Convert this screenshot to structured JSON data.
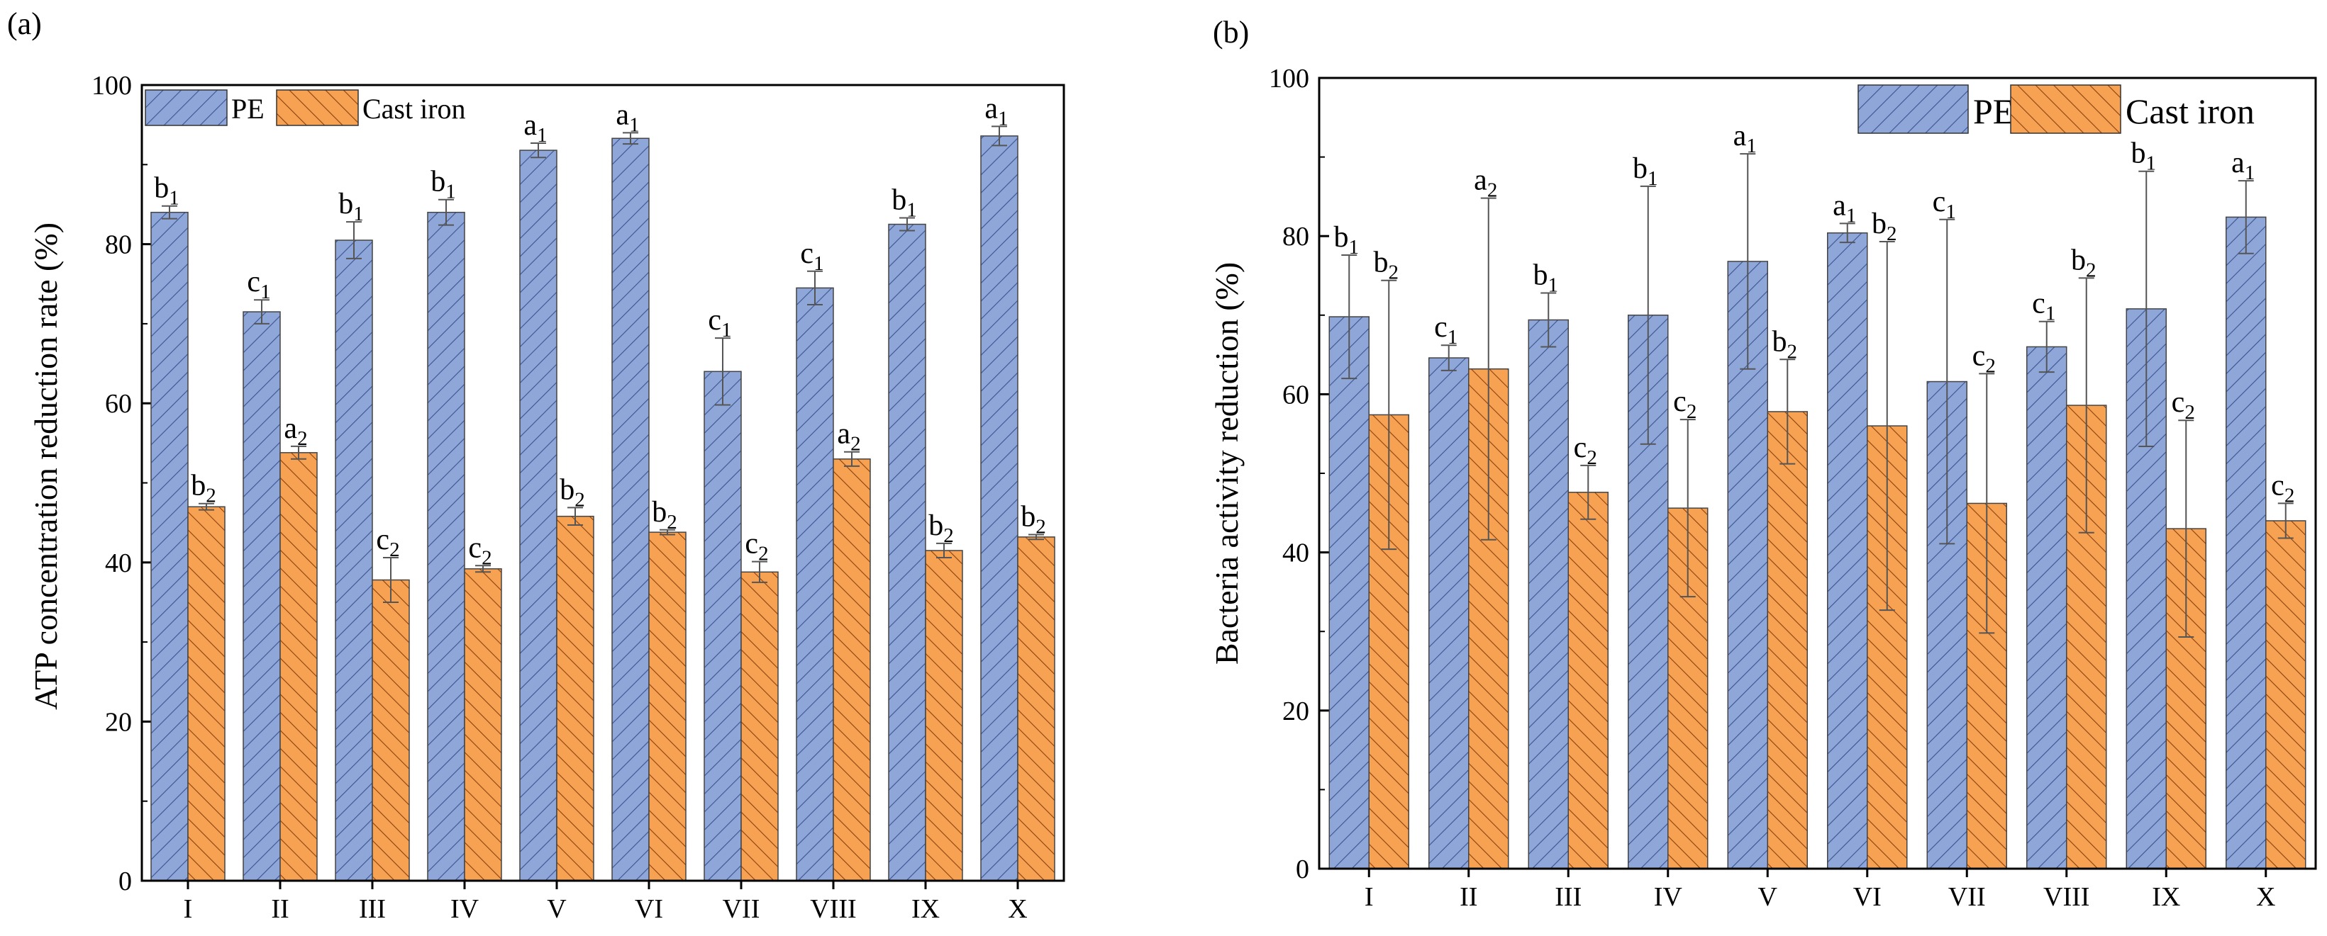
{
  "colors": {
    "pe_fill": "#8EA6D8",
    "pe_hatch": "#3B5390",
    "ci_fill": "#F7A153",
    "ci_hatch": "#8A4210",
    "axis": "#000000"
  },
  "chart_data": [
    {
      "panel_label": "(a)",
      "type": "bar",
      "ylabel": "ATP concentration reduction rate (%)",
      "xlabel": "",
      "ylim": [
        0,
        100
      ],
      "yticks": [
        "0",
        "20",
        "40",
        "60",
        "80",
        "100"
      ],
      "legend": {
        "placement": "top-left",
        "entries": [
          "PE",
          "Cast iron"
        ]
      },
      "categories": [
        "I",
        "II",
        "III",
        "IV",
        "V",
        "VI",
        "VII",
        "VIII",
        "IX",
        "X"
      ],
      "series": [
        {
          "name": "PE",
          "values": [
            84,
            71.5,
            80.5,
            84,
            91.8,
            93.3,
            64,
            74.5,
            82.5,
            93.6
          ],
          "errors": [
            0.8,
            1.5,
            2.3,
            1.6,
            0.9,
            0.7,
            4.2,
            2.1,
            0.8,
            1.2
          ],
          "labels": [
            [
              "b",
              "1"
            ],
            [
              "c",
              "1"
            ],
            [
              "b",
              "1"
            ],
            [
              "b",
              "1"
            ],
            [
              "a",
              "1"
            ],
            [
              "a",
              "1"
            ],
            [
              "c",
              "1"
            ],
            [
              "c",
              "1"
            ],
            [
              "b",
              "1"
            ],
            [
              "a",
              "1"
            ]
          ]
        },
        {
          "name": "Cast iron",
          "values": [
            47,
            53.8,
            37.8,
            39.2,
            45.8,
            43.8,
            38.8,
            53,
            41.5,
            43.2
          ],
          "errors": [
            0.4,
            0.8,
            2.8,
            0.4,
            1.1,
            0.3,
            1.3,
            0.9,
            0.9,
            0.3
          ],
          "labels": [
            [
              "b",
              "2"
            ],
            [
              "a",
              "2"
            ],
            [
              "c",
              "2"
            ],
            [
              "c",
              "2"
            ],
            [
              "b",
              "2"
            ],
            [
              "b",
              "2"
            ],
            [
              "c",
              "2"
            ],
            [
              "a",
              "2"
            ],
            [
              "b",
              "2"
            ],
            [
              "b",
              "2"
            ]
          ]
        }
      ]
    },
    {
      "panel_label": "(b)",
      "type": "bar",
      "ylabel": "Bacteria activity reduction (%)",
      "xlabel": "",
      "ylim": [
        0,
        100
      ],
      "yticks": [
        "0",
        "20",
        "40",
        "60",
        "80",
        "100"
      ],
      "legend": {
        "placement": "top-right",
        "entries": [
          "PE",
          "Cast iron"
        ]
      },
      "categories": [
        "I",
        "II",
        "III",
        "IV",
        "V",
        "VI",
        "VII",
        "VIII",
        "IX",
        "X"
      ],
      "series": [
        {
          "name": "PE",
          "values": [
            69.8,
            64.6,
            69.4,
            70,
            76.8,
            80.4,
            61.6,
            66,
            70.8,
            82.4
          ],
          "errors": [
            7.8,
            1.6,
            3.4,
            16.3,
            13.6,
            1.2,
            20.5,
            3.2,
            17.4,
            4.6
          ],
          "labels": [
            [
              "b",
              "1"
            ],
            [
              "c",
              "1"
            ],
            [
              "b",
              "1"
            ],
            [
              "b",
              "1"
            ],
            [
              "a",
              "1"
            ],
            [
              "a",
              "1"
            ],
            [
              "c",
              "1"
            ],
            [
              "c",
              "1"
            ],
            [
              "b",
              "1"
            ],
            [
              "a",
              "1"
            ]
          ]
        },
        {
          "name": "Cast iron",
          "values": [
            57.4,
            63.2,
            47.6,
            45.6,
            57.8,
            56,
            46.2,
            58.6,
            43,
            44
          ],
          "errors": [
            17,
            21.6,
            3.4,
            11.2,
            6.6,
            23.3,
            16.4,
            16.1,
            13.7,
            2.2
          ],
          "labels": [
            [
              "b",
              "2"
            ],
            [
              "a",
              "2"
            ],
            [
              "c",
              "2"
            ],
            [
              "c",
              "2"
            ],
            [
              "b",
              "2"
            ],
            [
              "b",
              "2"
            ],
            [
              "c",
              "2"
            ],
            [
              "b",
              "2"
            ],
            [
              "c",
              "2"
            ],
            [
              "c",
              "2"
            ]
          ]
        }
      ]
    }
  ]
}
